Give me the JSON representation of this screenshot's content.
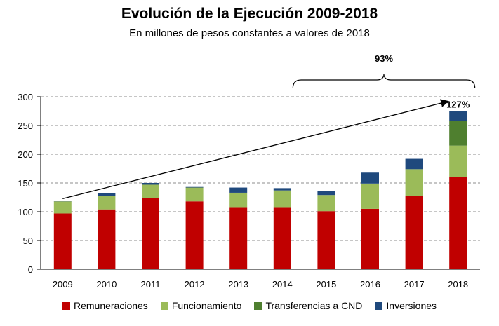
{
  "chart_data": {
    "type": "bar",
    "stacked": true,
    "title": "Evolución  de la Ejecución  2009-2018",
    "subtitle": "En millones de pesos constantes a valores de 2018",
    "categories": [
      "2009",
      "2010",
      "2011",
      "2012",
      "2013",
      "2014",
      "2015",
      "2016",
      "2017",
      "2018"
    ],
    "series": [
      {
        "name": "Remuneraciones",
        "color": "#C00000",
        "values": [
          97,
          104,
          124,
          118,
          108,
          108,
          101,
          105,
          127,
          160
        ]
      },
      {
        "name": "Funcionamiento",
        "color": "#9BBB59",
        "values": [
          21,
          23,
          23,
          24,
          25,
          29,
          28,
          44,
          47,
          55
        ]
      },
      {
        "name": "Transferencias a CND",
        "color": "#4F7F2F",
        "values": [
          0,
          0,
          0,
          0,
          0,
          0,
          0,
          0,
          0,
          43
        ]
      },
      {
        "name": "Inversiones",
        "color": "#1F497D",
        "values": [
          1,
          5,
          3,
          1,
          9,
          4,
          7,
          19,
          18,
          17
        ]
      }
    ],
    "ylim": [
      0,
      300
    ],
    "yticks": [
      0,
      50,
      100,
      150,
      200,
      250,
      300
    ],
    "grid": "dashed horizontal",
    "legend": "bottom",
    "annotations": {
      "bracket_label": "93%",
      "arrow_label": "127%",
      "bracket_from": "2014",
      "bracket_to": "2018",
      "arrow_from": "2009",
      "arrow_to": "2018"
    }
  }
}
